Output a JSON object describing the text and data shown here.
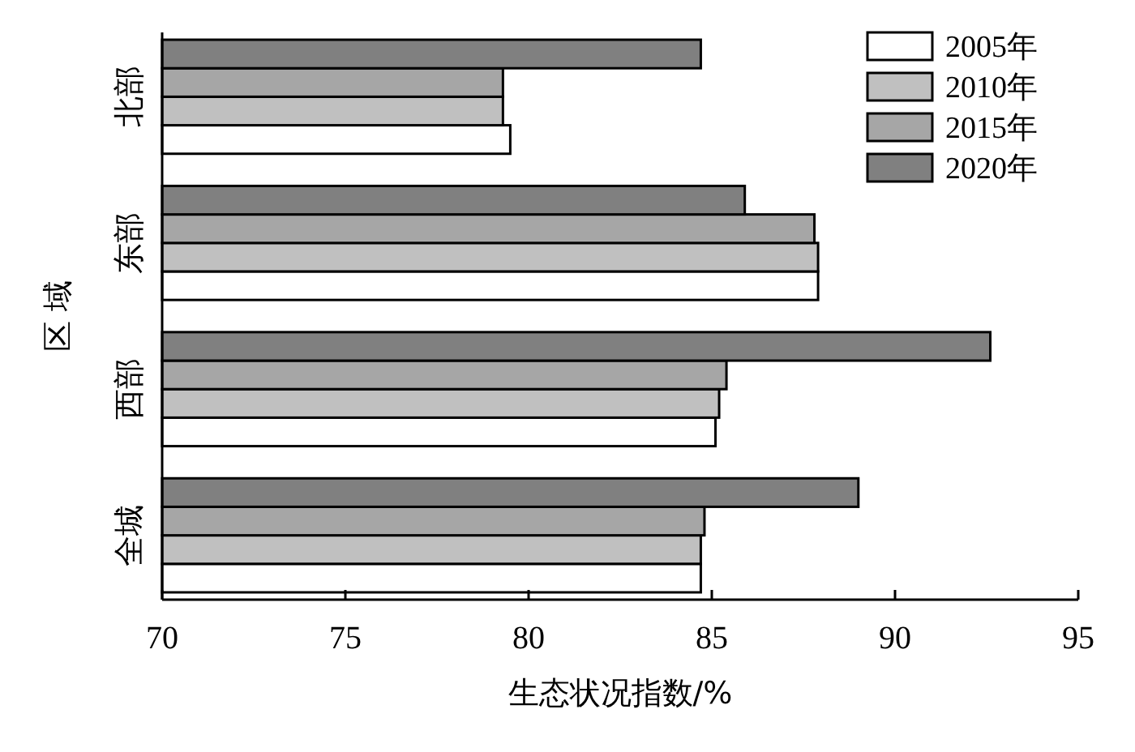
{
  "chart_data": {
    "type": "bar",
    "orientation": "horizontal",
    "xlabel": "生态状况指数/%",
    "ylabel": "区 域",
    "categories": [
      "北部",
      "东部",
      "西部",
      "全城"
    ],
    "series": [
      {
        "name": "2005年",
        "color": "#ffffff",
        "values": [
          79.5,
          87.9,
          85.1,
          84.7
        ]
      },
      {
        "name": "2010年",
        "color": "#c0c0c0",
        "values": [
          79.3,
          87.9,
          85.2,
          84.7
        ]
      },
      {
        "name": "2015年",
        "color": "#a6a6a6",
        "values": [
          79.3,
          87.8,
          85.4,
          84.8
        ]
      },
      {
        "name": "2020年",
        "color": "#808080",
        "values": [
          84.7,
          85.9,
          92.6,
          89.0
        ]
      }
    ],
    "xlim": [
      70,
      95
    ],
    "xticks": [
      70,
      75,
      80,
      85,
      90,
      95
    ],
    "grid": false,
    "legend": "top right"
  }
}
